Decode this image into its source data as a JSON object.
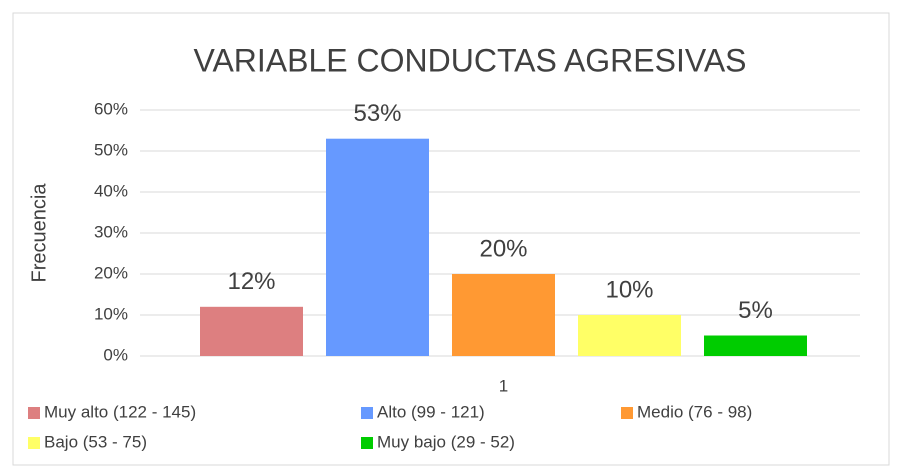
{
  "chart_data": {
    "type": "bar",
    "title": "VARIABLE CONDUCTAS AGRESIVAS",
    "y_label": "Frecuencia",
    "categories": [
      "1"
    ],
    "series": [
      {
        "name": "Muy alto (122 - 145)",
        "color": "#dd7f80",
        "values": [
          12
        ],
        "value_labels": [
          "12%"
        ]
      },
      {
        "name": "Alto (99 - 121)",
        "color": "#6699ff",
        "values": [
          53
        ],
        "value_labels": [
          "53%"
        ]
      },
      {
        "name": "Medio (76 - 98)",
        "color": "#ff9933",
        "values": [
          20
        ],
        "value_labels": [
          "20%"
        ]
      },
      {
        "name": "Bajo (53 - 75)",
        "color": "#ffff66",
        "values": [
          10
        ],
        "value_labels": [
          "10%"
        ]
      },
      {
        "name": "Muy bajo (29 - 52)",
        "color": "#00cc00",
        "values": [
          5
        ],
        "value_labels": [
          "5%"
        ]
      }
    ],
    "ylim": [
      0,
      60
    ],
    "yticks": [
      {
        "value": 0,
        "label": "0%"
      },
      {
        "value": 10,
        "label": "10%"
      },
      {
        "value": 20,
        "label": "20%"
      },
      {
        "value": 30,
        "label": "30%"
      },
      {
        "value": 40,
        "label": "40%"
      },
      {
        "value": 50,
        "label": "50%"
      },
      {
        "value": 60,
        "label": "60%"
      }
    ],
    "grid": true,
    "legend": "bottom"
  }
}
